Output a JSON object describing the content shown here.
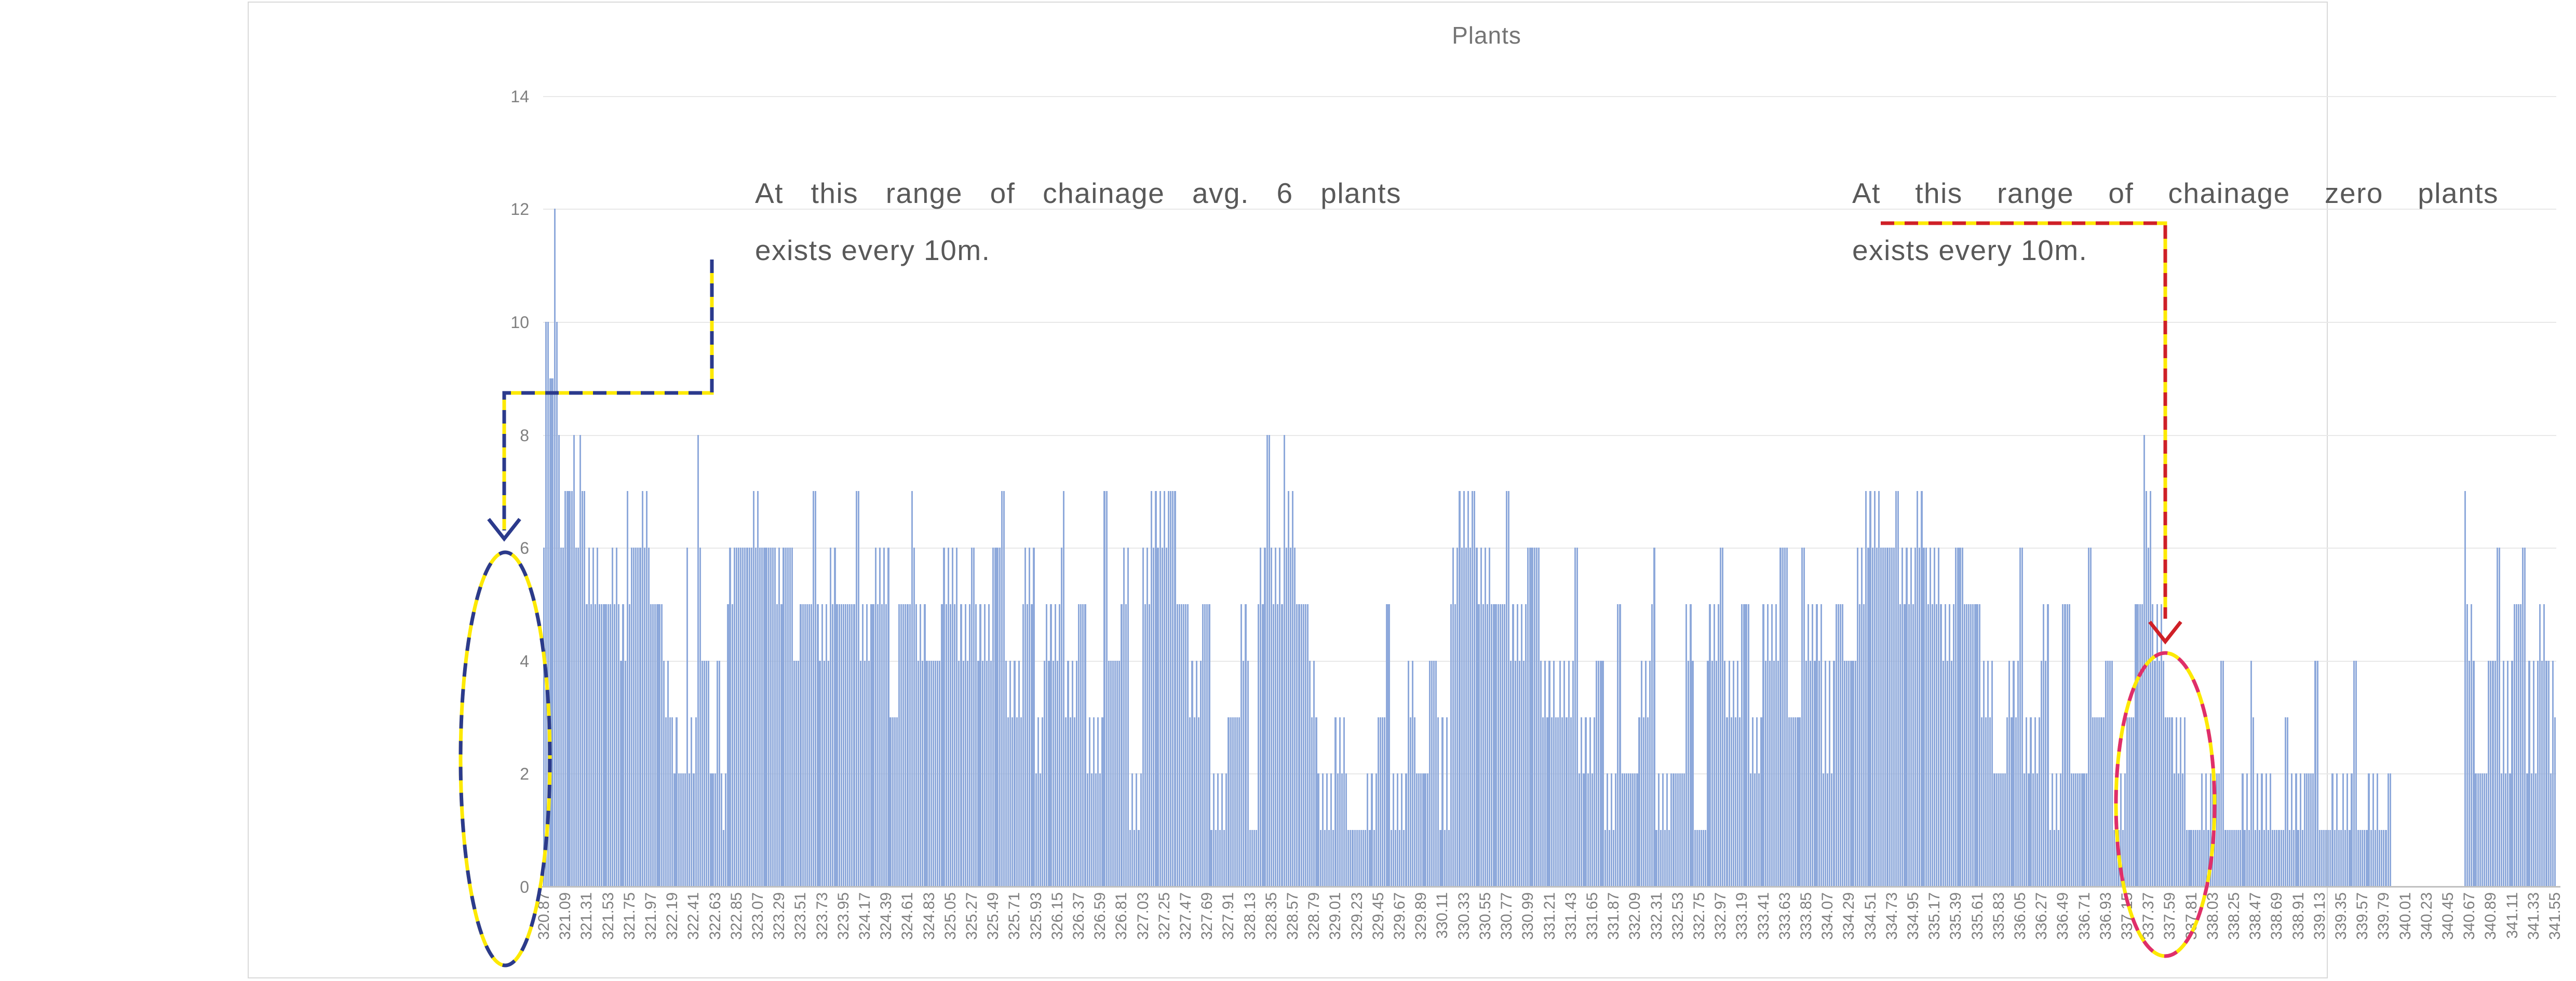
{
  "chart_data": {
    "type": "bar",
    "title": "Plants",
    "xlabel": "",
    "ylabel": "",
    "ylim": [
      0,
      14
    ],
    "grid": "horizontal, every 2 units, light gray",
    "legend": "none",
    "y_ticks": [
      "0",
      "2",
      "4",
      "6",
      "8",
      "10",
      "12",
      "14"
    ],
    "x_tick_labels": [
      "320.87",
      "321.09",
      "321.31",
      "321.53",
      "321.75",
      "321.97",
      "322.19",
      "322.41",
      "322.63",
      "322.85",
      "323.07",
      "323.29",
      "323.51",
      "323.73",
      "323.95",
      "324.17",
      "324.39",
      "324.61",
      "324.83",
      "325.05",
      "325.27",
      "325.49",
      "325.71",
      "325.93",
      "326.15",
      "326.37",
      "326.59",
      "326.81",
      "327.03",
      "327.25",
      "327.47",
      "327.69",
      "327.91",
      "328.13",
      "328.35",
      "328.57",
      "328.79",
      "329.01",
      "329.23",
      "329.45",
      "329.67",
      "329.89",
      "330.11",
      "330.33",
      "330.55",
      "330.77",
      "330.99",
      "331.21",
      "331.43",
      "331.65",
      "331.87",
      "332.09",
      "332.31",
      "332.53",
      "332.75",
      "332.97",
      "333.19",
      "333.41",
      "333.63",
      "333.85",
      "334.07",
      "334.29",
      "334.51",
      "334.73",
      "334.95",
      "335.17",
      "335.39",
      "335.61",
      "335.83",
      "336.05",
      "336.27",
      "336.49",
      "336.71",
      "336.93",
      "337.15",
      "337.37",
      "337.59",
      "337.81",
      "338.03",
      "338.25",
      "338.47",
      "338.69",
      "338.91",
      "339.13",
      "339.35",
      "339.57",
      "339.79",
      "340.01",
      "340.23",
      "340.45",
      "340.67",
      "340.89",
      "341.11",
      "341.33",
      "341.55"
    ],
    "x_label_every_n_bars": 10,
    "bars": {
      "x_start": 320.87,
      "x_step": 0.022,
      "count": 941,
      "runs_format": "[bar_count, repeating_value_pattern] — estimated plant counts per ~10m chainage bin, read from bar heights",
      "runs": [
        [
          1,
          [
            6
          ]
        ],
        [
          2,
          [
            10
          ]
        ],
        [
          2,
          [
            9
          ]
        ],
        [
          1,
          [
            12
          ]
        ],
        [
          1,
          [
            10
          ]
        ],
        [
          1,
          [
            8
          ]
        ],
        [
          2,
          [
            6
          ]
        ],
        [
          4,
          [
            7
          ]
        ],
        [
          1,
          [
            8
          ]
        ],
        [
          2,
          [
            6
          ]
        ],
        [
          1,
          [
            8
          ]
        ],
        [
          2,
          [
            7
          ]
        ],
        [
          6,
          [
            5,
            6
          ]
        ],
        [
          6,
          [
            5
          ]
        ],
        [
          4,
          [
            6,
            5
          ]
        ],
        [
          3,
          [
            4,
            5
          ]
        ],
        [
          2,
          [
            7,
            5
          ]
        ],
        [
          4,
          [
            6
          ]
        ],
        [
          5,
          [
            6,
            7
          ]
        ],
        [
          6,
          [
            5
          ]
        ],
        [
          4,
          [
            4,
            3
          ]
        ],
        [
          4,
          [
            3,
            2
          ]
        ],
        [
          3,
          [
            2
          ]
        ],
        [
          1,
          [
            6
          ]
        ],
        [
          4,
          [
            2,
            3
          ]
        ],
        [
          1,
          [
            8
          ]
        ],
        [
          1,
          [
            6
          ]
        ],
        [
          4,
          [
            4
          ]
        ],
        [
          3,
          [
            2
          ]
        ],
        [
          2,
          [
            4
          ]
        ],
        [
          3,
          [
            2,
            1
          ]
        ],
        [
          4,
          [
            5,
            6
          ]
        ],
        [
          8,
          [
            6
          ]
        ],
        [
          3,
          [
            7,
            6
          ]
        ],
        [
          8,
          [
            6
          ]
        ],
        [
          4,
          [
            5,
            6
          ]
        ],
        [
          4,
          [
            6
          ]
        ],
        [
          3,
          [
            4
          ]
        ],
        [
          6,
          [
            5
          ]
        ],
        [
          2,
          [
            7
          ]
        ],
        [
          6,
          [
            5,
            4
          ]
        ],
        [
          4,
          [
            6,
            5
          ]
        ],
        [
          8,
          [
            5
          ]
        ],
        [
          2,
          [
            7
          ]
        ],
        [
          6,
          [
            4,
            5
          ]
        ],
        [
          8,
          [
            5,
            6
          ]
        ],
        [
          4,
          [
            3
          ]
        ],
        [
          6,
          [
            5
          ]
        ],
        [
          2,
          [
            7,
            6
          ]
        ],
        [
          6,
          [
            5,
            4
          ]
        ],
        [
          6,
          [
            4
          ]
        ],
        [
          8,
          [
            5,
            6
          ]
        ],
        [
          6,
          [
            4,
            5
          ]
        ],
        [
          2,
          [
            6
          ]
        ],
        [
          8,
          [
            5,
            4
          ]
        ],
        [
          4,
          [
            6
          ]
        ],
        [
          2,
          [
            7
          ]
        ],
        [
          8,
          [
            4,
            3
          ]
        ],
        [
          6,
          [
            5,
            6
          ]
        ],
        [
          4,
          [
            2,
            3
          ]
        ],
        [
          8,
          [
            4,
            5
          ]
        ],
        [
          2,
          [
            6,
            7
          ]
        ],
        [
          6,
          [
            3,
            4
          ]
        ],
        [
          4,
          [
            5
          ]
        ],
        [
          8,
          [
            2,
            3
          ]
        ],
        [
          2,
          [
            7
          ]
        ],
        [
          6,
          [
            4
          ]
        ],
        [
          4,
          [
            5,
            6
          ]
        ],
        [
          6,
          [
            1,
            2
          ]
        ],
        [
          4,
          [
            6,
            5
          ]
        ],
        [
          8,
          [
            7,
            6
          ]
        ],
        [
          4,
          [
            7
          ]
        ],
        [
          6,
          [
            5
          ]
        ],
        [
          6,
          [
            3,
            4
          ]
        ],
        [
          4,
          [
            5
          ]
        ],
        [
          8,
          [
            1,
            2
          ]
        ],
        [
          6,
          [
            3
          ]
        ],
        [
          4,
          [
            5,
            4
          ]
        ],
        [
          4,
          [
            1
          ]
        ],
        [
          4,
          [
            5,
            6
          ]
        ],
        [
          2,
          [
            8
          ]
        ],
        [
          6,
          [
            6,
            5
          ]
        ],
        [
          1,
          [
            8
          ]
        ],
        [
          5,
          [
            6,
            7
          ]
        ],
        [
          6,
          [
            5
          ]
        ],
        [
          4,
          [
            4,
            3
          ]
        ],
        [
          8,
          [
            2,
            1
          ]
        ],
        [
          6,
          [
            3,
            2
          ]
        ],
        [
          8,
          [
            1
          ]
        ],
        [
          6,
          [
            1,
            2
          ]
        ],
        [
          4,
          [
            3
          ]
        ],
        [
          2,
          [
            5
          ]
        ],
        [
          8,
          [
            1,
            2
          ]
        ],
        [
          4,
          [
            4,
            3
          ]
        ],
        [
          6,
          [
            2
          ]
        ],
        [
          4,
          [
            4
          ]
        ],
        [
          6,
          [
            3,
            1
          ]
        ],
        [
          4,
          [
            5,
            6
          ]
        ],
        [
          6,
          [
            7,
            6
          ]
        ],
        [
          2,
          [
            7
          ]
        ],
        [
          8,
          [
            6,
            5
          ]
        ],
        [
          6,
          [
            5
          ]
        ],
        [
          2,
          [
            7
          ]
        ],
        [
          8,
          [
            4,
            5
          ]
        ],
        [
          6,
          [
            6
          ]
        ],
        [
          8,
          [
            4,
            3
          ]
        ],
        [
          8,
          [
            3,
            4
          ]
        ],
        [
          2,
          [
            6
          ]
        ],
        [
          8,
          [
            2,
            3
          ]
        ],
        [
          4,
          [
            4
          ]
        ],
        [
          6,
          [
            1,
            2
          ]
        ],
        [
          2,
          [
            5
          ]
        ],
        [
          8,
          [
            2
          ]
        ],
        [
          6,
          [
            3,
            4
          ]
        ],
        [
          2,
          [
            5,
            6
          ]
        ],
        [
          8,
          [
            1,
            2
          ]
        ],
        [
          6,
          [
            2
          ]
        ],
        [
          4,
          [
            5,
            4
          ]
        ],
        [
          6,
          [
            1
          ]
        ],
        [
          6,
          [
            4,
            5
          ]
        ],
        [
          2,
          [
            6
          ]
        ],
        [
          8,
          [
            4,
            3
          ]
        ],
        [
          4,
          [
            5
          ]
        ],
        [
          6,
          [
            2,
            3
          ]
        ],
        [
          8,
          [
            5,
            4
          ]
        ],
        [
          4,
          [
            6
          ]
        ],
        [
          6,
          [
            3
          ]
        ],
        [
          2,
          [
            6
          ]
        ],
        [
          8,
          [
            4,
            5
          ]
        ],
        [
          6,
          [
            2,
            4
          ]
        ],
        [
          4,
          [
            5
          ]
        ],
        [
          6,
          [
            4
          ]
        ],
        [
          4,
          [
            6,
            5
          ]
        ],
        [
          8,
          [
            7,
            6
          ]
        ],
        [
          6,
          [
            6
          ]
        ],
        [
          2,
          [
            7
          ]
        ],
        [
          8,
          [
            5,
            6
          ]
        ],
        [
          4,
          [
            7,
            6
          ]
        ],
        [
          8,
          [
            6,
            5
          ]
        ],
        [
          6,
          [
            4,
            5
          ]
        ],
        [
          4,
          [
            6
          ]
        ],
        [
          8,
          [
            5
          ]
        ],
        [
          6,
          [
            3,
            4
          ]
        ],
        [
          6,
          [
            2
          ]
        ],
        [
          6,
          [
            3,
            4
          ]
        ],
        [
          2,
          [
            6
          ]
        ],
        [
          8,
          [
            2,
            3
          ]
        ],
        [
          4,
          [
            4,
            5
          ]
        ],
        [
          6,
          [
            1,
            2
          ]
        ],
        [
          4,
          [
            5
          ]
        ],
        [
          8,
          [
            2
          ]
        ],
        [
          2,
          [
            6
          ]
        ],
        [
          6,
          [
            3
          ]
        ],
        [
          4,
          [
            4
          ]
        ],
        [
          6,
          [
            1,
            2
          ]
        ],
        [
          4,
          [
            3
          ]
        ],
        [
          4,
          [
            5
          ]
        ],
        [
          1,
          [
            8
          ]
        ],
        [
          3,
          [
            7,
            6
          ]
        ],
        [
          6,
          [
            5,
            4
          ]
        ],
        [
          4,
          [
            3
          ]
        ],
        [
          6,
          [
            2,
            3
          ]
        ],
        [
          6,
          [
            1
          ]
        ],
        [
          6,
          [
            1,
            2
          ]
        ],
        [
          4,
          [
            2
          ]
        ],
        [
          2,
          [
            4
          ]
        ],
        [
          8,
          [
            1
          ]
        ],
        [
          4,
          [
            2,
            1
          ]
        ],
        [
          2,
          [
            4,
            3
          ]
        ],
        [
          8,
          [
            1,
            2
          ]
        ],
        [
          6,
          [
            1
          ]
        ],
        [
          2,
          [
            3
          ]
        ],
        [
          8,
          [
            1,
            2
          ]
        ],
        [
          4,
          [
            2
          ]
        ],
        [
          2,
          [
            4
          ]
        ],
        [
          6,
          [
            1
          ]
        ],
        [
          4,
          [
            2,
            1
          ]
        ],
        [
          6,
          [
            1,
            2
          ]
        ],
        [
          2,
          [
            4
          ]
        ],
        [
          4,
          [
            1
          ]
        ],
        [
          6,
          [
            1,
            2
          ]
        ],
        [
          4,
          [
            1
          ]
        ],
        [
          2,
          [
            2
          ]
        ],
        [
          34,
          [
            0
          ]
        ],
        [
          1,
          [
            7
          ]
        ],
        [
          4,
          [
            5,
            4
          ]
        ],
        [
          6,
          [
            2
          ]
        ],
        [
          4,
          [
            4
          ]
        ],
        [
          2,
          [
            6
          ]
        ],
        [
          6,
          [
            2,
            4
          ]
        ],
        [
          4,
          [
            5
          ]
        ],
        [
          2,
          [
            6
          ]
        ],
        [
          6,
          [
            2,
            4
          ]
        ],
        [
          4,
          [
            5,
            4
          ]
        ],
        [
          3,
          [
            4,
            2
          ]
        ],
        [
          1,
          [
            3
          ]
        ]
      ]
    }
  },
  "annotations": {
    "left": {
      "line1": "At this range of chainage avg. 6 plants",
      "line2": "exists every 10m.",
      "highlight_range": "≈ 322.85 – 323.30 chainage",
      "leader_style": "navy-and-yellow dashed elbow arrow",
      "ellipse_style": "navy-and-yellow dashed ellipse"
    },
    "right": {
      "line1": "At this range of chainage zero plants",
      "line2": "exists every 10m.",
      "highlight_range": "≈ 339.80 – 340.60 chainage",
      "leader_style": "red-and-yellow dashed elbow arrow",
      "ellipse_style": "crimson-and-yellow dashed ellipse"
    }
  },
  "colors": {
    "bar": "#8ea9db",
    "gridline": "#e8e8e8",
    "axis_line": "#c0c0c0",
    "tick_text": "#7f7f7f",
    "title_text": "#757575",
    "annotation_text": "#595959",
    "frame_border": "#d9d9d9",
    "navy_dash": "#2b3a8c",
    "yellow_dash": "#fde903",
    "red_dash": "#cf2027",
    "crimson_dash": "#df2e6b"
  }
}
